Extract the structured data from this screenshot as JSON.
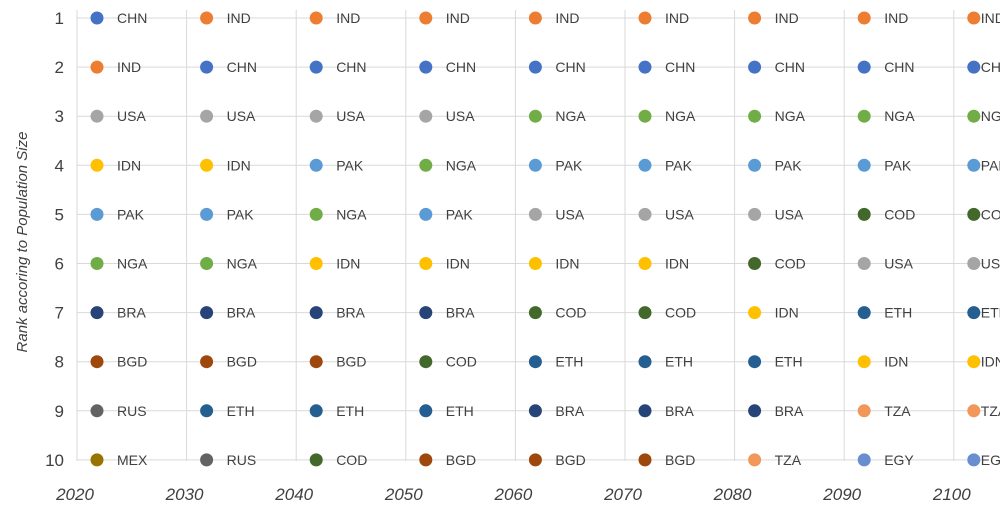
{
  "chart_data": {
    "type": "scatter",
    "title": "",
    "xlabel": "",
    "ylabel": "Rank accoring to Population Size",
    "x": [
      2020,
      2030,
      2040,
      2050,
      2060,
      2070,
      2080,
      2090,
      2100
    ],
    "x_tick_labels": [
      "2020",
      "2030",
      "2040",
      "2050",
      "2060",
      "2070",
      "2080",
      "2090",
      "2100"
    ],
    "y_tick_labels": [
      "1",
      "2",
      "3",
      "4",
      "5",
      "6",
      "7",
      "8",
      "9",
      "10"
    ],
    "ylim": [
      10,
      1
    ],
    "y_axis_reversed": true,
    "grid": true,
    "colors": {
      "CHN": "#4472C4",
      "IND": "#ED7D31",
      "USA": "#A5A5A5",
      "IDN": "#FFC000",
      "PAK": "#5B9BD5",
      "NGA": "#70AD47",
      "BRA": "#264478",
      "BGD": "#9E480E",
      "RUS": "#636363",
      "MEX": "#997300",
      "ETH": "#255E91",
      "COD": "#43682B",
      "TZA": "#F1975A",
      "EGY": "#698ED0"
    },
    "rankings": [
      {
        "year": 2020,
        "ranks": [
          "CHN",
          "IND",
          "USA",
          "IDN",
          "PAK",
          "NGA",
          "BRA",
          "BGD",
          "RUS",
          "MEX"
        ]
      },
      {
        "year": 2030,
        "ranks": [
          "IND",
          "CHN",
          "USA",
          "IDN",
          "PAK",
          "NGA",
          "BRA",
          "BGD",
          "ETH",
          "RUS"
        ]
      },
      {
        "year": 2040,
        "ranks": [
          "IND",
          "CHN",
          "USA",
          "PAK",
          "NGA",
          "IDN",
          "BRA",
          "BGD",
          "ETH",
          "COD"
        ]
      },
      {
        "year": 2050,
        "ranks": [
          "IND",
          "CHN",
          "USA",
          "NGA",
          "PAK",
          "IDN",
          "BRA",
          "COD",
          "ETH",
          "BGD"
        ]
      },
      {
        "year": 2060,
        "ranks": [
          "IND",
          "CHN",
          "NGA",
          "PAK",
          "USA",
          "IDN",
          "COD",
          "ETH",
          "BRA",
          "BGD"
        ]
      },
      {
        "year": 2070,
        "ranks": [
          "IND",
          "CHN",
          "NGA",
          "PAK",
          "USA",
          "IDN",
          "COD",
          "ETH",
          "BRA",
          "BGD"
        ]
      },
      {
        "year": 2080,
        "ranks": [
          "IND",
          "CHN",
          "NGA",
          "PAK",
          "USA",
          "COD",
          "IDN",
          "ETH",
          "BRA",
          "TZA"
        ]
      },
      {
        "year": 2090,
        "ranks": [
          "IND",
          "CHN",
          "NGA",
          "PAK",
          "COD",
          "USA",
          "ETH",
          "IDN",
          "TZA",
          "EGY"
        ]
      },
      {
        "year": 2100,
        "ranks": [
          "IND",
          "CHN",
          "NGA",
          "PAK",
          "COD",
          "USA",
          "ETH",
          "IDN",
          "TZA",
          "EGY"
        ]
      }
    ]
  }
}
